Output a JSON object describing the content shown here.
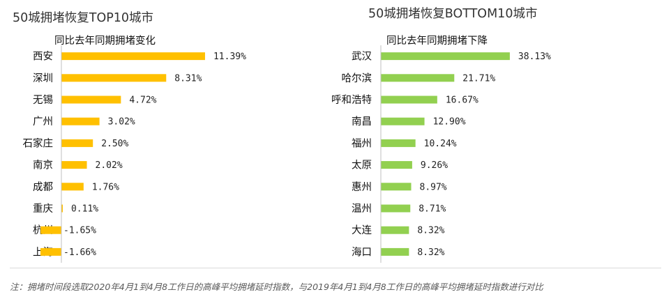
{
  "chart_data": [
    {
      "type": "bar",
      "orientation": "horizontal",
      "title": "50城拥堵恢复TOP10城市",
      "subtitle": "同比去年同期拥堵变化",
      "categories": [
        "西安",
        "深圳",
        "无锡",
        "广州",
        "石家庄",
        "南京",
        "成都",
        "重庆",
        "杭州",
        "上海"
      ],
      "values": [
        11.39,
        8.31,
        4.72,
        3.02,
        2.5,
        2.02,
        1.76,
        0.11,
        -1.65,
        -1.66
      ],
      "value_labels": [
        "11.39%",
        "8.31%",
        "4.72%",
        "3.02%",
        "2.50%",
        "2.02%",
        "1.76%",
        "0.11%",
        "-1.65%",
        "-1.66%"
      ],
      "xlim": [
        -2,
        12
      ],
      "color": "#FFC000",
      "grid": false
    },
    {
      "type": "bar",
      "orientation": "horizontal",
      "title": "50城拥堵恢复BOTTOM10城市",
      "subtitle": "同比去年同期拥堵下降",
      "categories": [
        "武汉",
        "哈尔滨",
        "呼和浩特",
        "南昌",
        "福州",
        "太原",
        "惠州",
        "温州",
        "大连",
        "海口"
      ],
      "values": [
        38.13,
        21.71,
        16.67,
        12.9,
        10.24,
        9.26,
        8.97,
        8.71,
        8.32,
        8.32
      ],
      "value_labels": [
        "38.13%",
        "21.71%",
        "16.67%",
        "12.90%",
        "10.24%",
        "9.26%",
        "8.97%",
        "8.71%",
        "8.32%",
        "8.32%"
      ],
      "xlim": [
        0,
        40
      ],
      "color": "#92D050",
      "grid": false
    }
  ],
  "note": "注：拥堵时间段选取2020年4月1到4月8工作日的高峰平均拥堵延时指数，与2019年4月1到4月8工作日的高峰平均拥堵延时指数进行对比"
}
